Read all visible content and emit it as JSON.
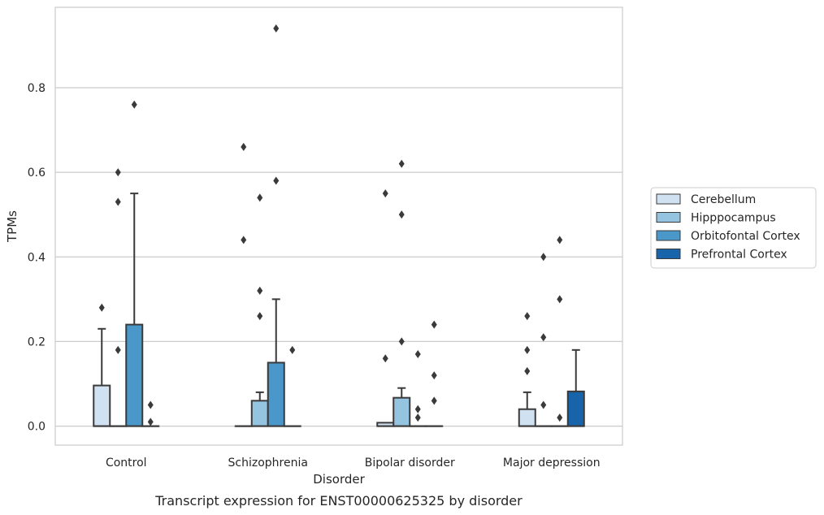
{
  "chart_data": {
    "type": "box",
    "caption": "Transcript expression for ENST00000625325 by disorder",
    "xlabel": "Disorder",
    "ylabel": "TPMs",
    "ylim": [
      -0.045,
      0.99
    ],
    "yticks": [
      0.0,
      0.2,
      0.4,
      0.6,
      0.8
    ],
    "ytick_labels": [
      "0.0",
      "0.2",
      "0.4",
      "0.6",
      "0.8"
    ],
    "grid": "horizontal",
    "legend_position": "right",
    "categories": [
      "Control",
      "Schizophrenia",
      "Bipolar disorder",
      "Major depression"
    ],
    "series": [
      {
        "name": "Cerebellum",
        "color": "#d0e1f2",
        "boxes": [
          {
            "q1": 0,
            "median": 0,
            "q3": 0.096,
            "whisker_low": 0,
            "whisker_high": 0.23,
            "outliers": [
              0.28
            ]
          },
          {
            "q1": 0,
            "median": 0,
            "q3": 0,
            "whisker_low": 0,
            "whisker_high": 0,
            "outliers": [
              0.44,
              0.66
            ]
          },
          {
            "q1": 0,
            "median": 0,
            "q3": 0.008,
            "whisker_low": 0,
            "whisker_high": 0.008,
            "outliers": [
              0.16,
              0.55
            ]
          },
          {
            "q1": 0,
            "median": 0,
            "q3": 0.04,
            "whisker_low": 0,
            "whisker_high": 0.08,
            "outliers": [
              0.13,
              0.18,
              0.26
            ]
          }
        ]
      },
      {
        "name": "Hipppocampus",
        "color": "#94c4df",
        "boxes": [
          {
            "q1": 0,
            "median": 0,
            "q3": 0,
            "whisker_low": 0,
            "whisker_high": 0,
            "outliers": [
              0.18,
              0.53,
              0.6
            ]
          },
          {
            "q1": 0,
            "median": 0,
            "q3": 0.06,
            "whisker_low": 0,
            "whisker_high": 0.08,
            "outliers": [
              0.26,
              0.32,
              0.54
            ]
          },
          {
            "q1": 0,
            "median": 0,
            "q3": 0.067,
            "whisker_low": 0,
            "whisker_high": 0.09,
            "outliers": [
              0.2,
              0.5,
              0.62
            ]
          },
          {
            "q1": 0,
            "median": 0,
            "q3": 0,
            "whisker_low": 0,
            "whisker_high": 0,
            "outliers": [
              0.05,
              0.21,
              0.4
            ]
          }
        ]
      },
      {
        "name": "Orbitofontal Cortex",
        "color": "#4a98c9",
        "boxes": [
          {
            "q1": 0,
            "median": 0,
            "q3": 0.24,
            "whisker_low": 0,
            "whisker_high": 0.55,
            "outliers": [
              0.76
            ]
          },
          {
            "q1": 0,
            "median": 0,
            "q3": 0.15,
            "whisker_low": 0,
            "whisker_high": 0.3,
            "outliers": [
              0.58,
              0.94
            ]
          },
          {
            "q1": 0,
            "median": 0,
            "q3": 0,
            "whisker_low": 0,
            "whisker_high": 0,
            "outliers": [
              0.02,
              0.04,
              0.17
            ]
          },
          {
            "q1": 0,
            "median": 0,
            "q3": 0,
            "whisker_low": 0,
            "whisker_high": 0,
            "outliers": [
              0.02,
              0.3,
              0.44
            ]
          }
        ]
      },
      {
        "name": "Prefrontal Cortex",
        "color": "#1764ab",
        "boxes": [
          {
            "q1": 0,
            "median": 0,
            "q3": 0,
            "whisker_low": 0,
            "whisker_high": 0,
            "outliers": [
              0.01,
              0.05
            ]
          },
          {
            "q1": 0,
            "median": 0,
            "q3": 0,
            "whisker_low": 0,
            "whisker_high": 0,
            "outliers": [
              0.18
            ]
          },
          {
            "q1": 0,
            "median": 0,
            "q3": 0,
            "whisker_low": 0,
            "whisker_high": 0,
            "outliers": [
              0.06,
              0.12,
              0.24
            ]
          },
          {
            "q1": 0,
            "median": 0,
            "q3": 0.082,
            "whisker_low": 0,
            "whisker_high": 0.18,
            "outliers": []
          }
        ]
      }
    ]
  }
}
